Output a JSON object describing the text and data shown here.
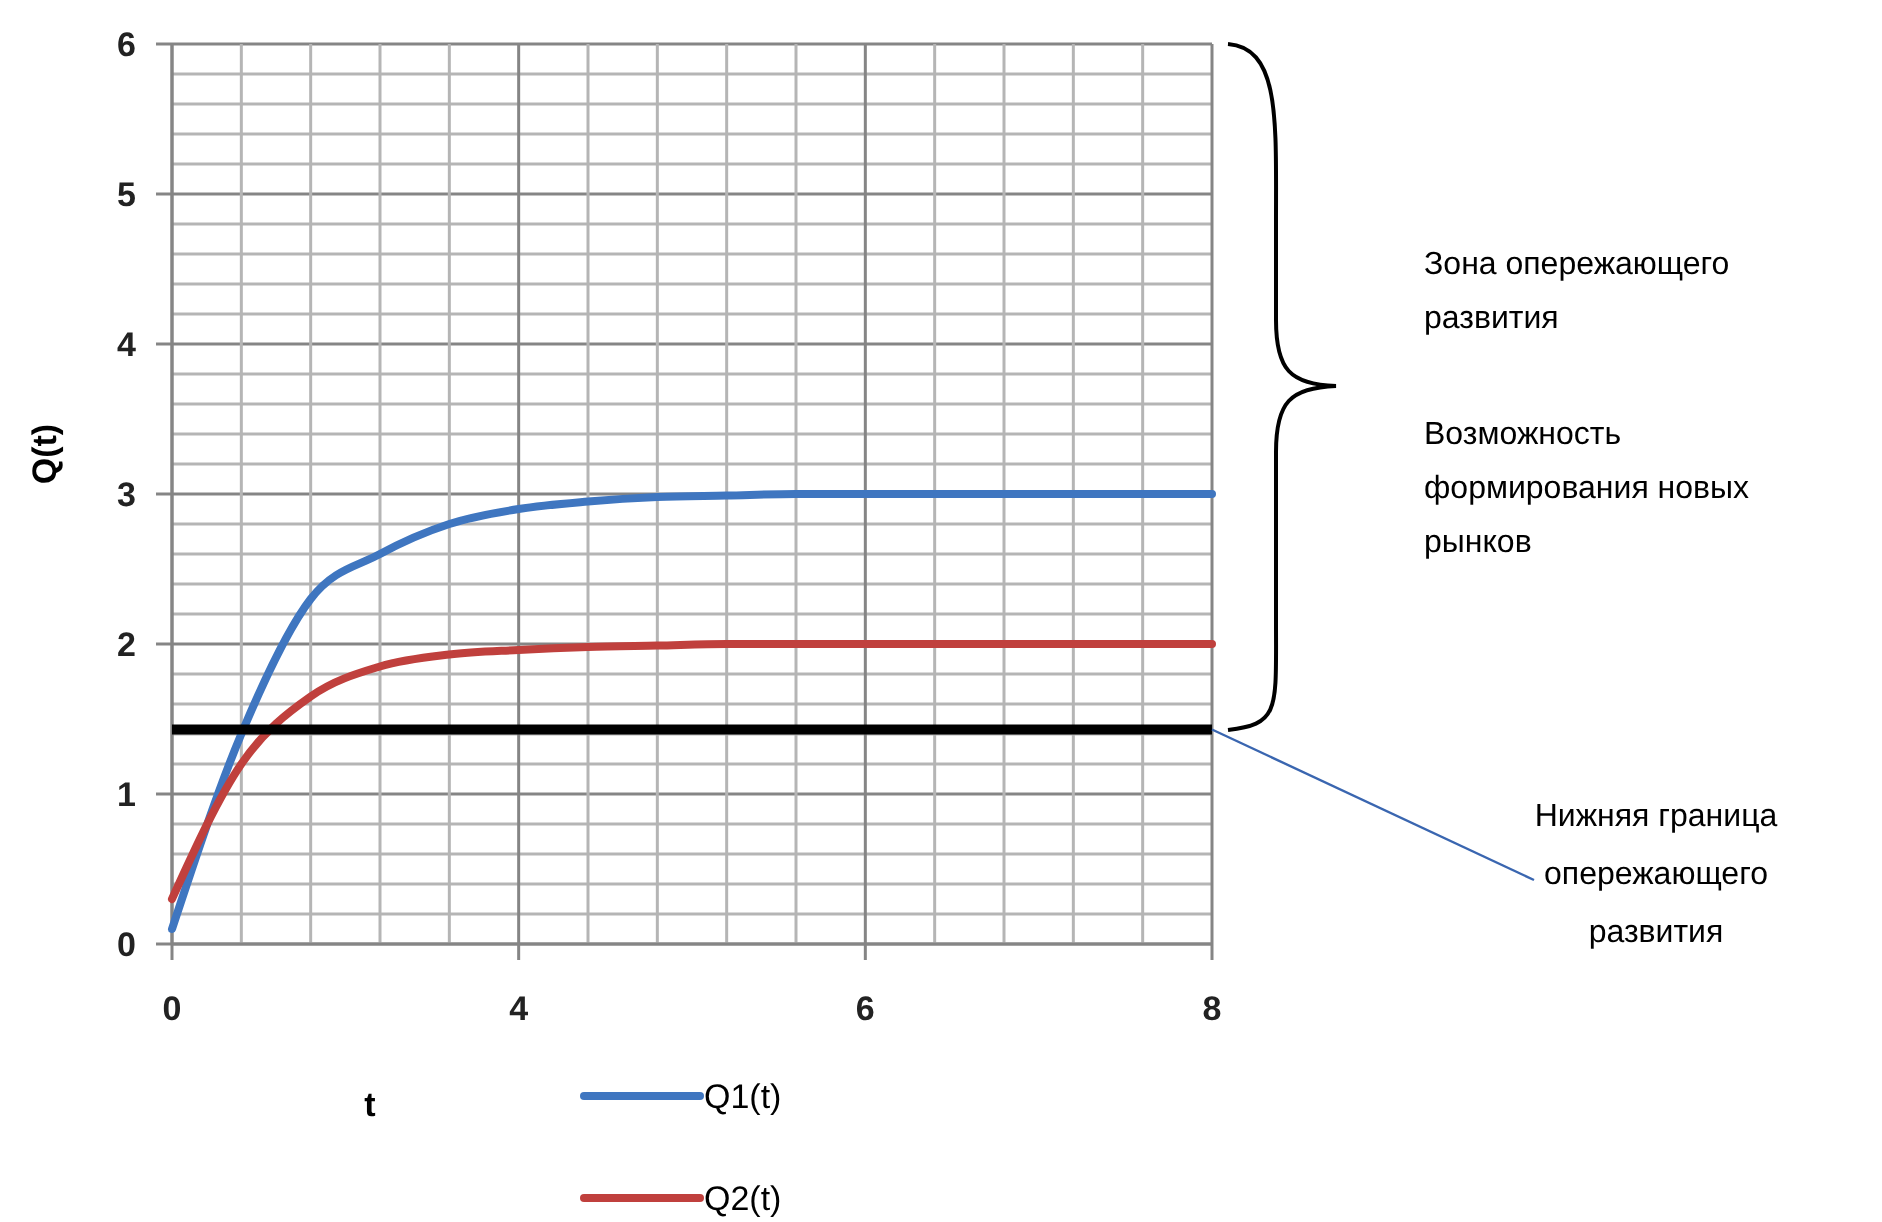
{
  "chart_data": {
    "type": "line",
    "xlabel": "t",
    "ylabel": "Q(t)",
    "categories": [
      "0",
      null,
      null,
      null,
      null,
      "4",
      null,
      null,
      null,
      null,
      "6",
      null,
      null,
      null,
      null,
      "8"
    ],
    "ylim": [
      0,
      6
    ],
    "yticks": [
      0,
      1,
      2,
      3,
      4,
      5,
      6
    ],
    "grid": true,
    "legend": "bottom",
    "series": [
      {
        "name": "Q1(t)",
        "color": "#3f76c0",
        "values": [
          0.1,
          1.4,
          2.3,
          2.6,
          2.8,
          2.9,
          2.95,
          2.98,
          2.99,
          3,
          3,
          3,
          3,
          3,
          3,
          3
        ]
      },
      {
        "name": "Q2(t)",
        "color": "#c0403d",
        "values": [
          0.3,
          1.2,
          1.65,
          1.85,
          1.93,
          1.96,
          1.98,
          1.99,
          2,
          2,
          2,
          2,
          2,
          2,
          2,
          2
        ]
      }
    ],
    "ref_lines": [
      {
        "axis": "y",
        "value": 1.43,
        "label": "Нижняя граница опережающего развития",
        "color": "#000000"
      }
    ],
    "annotations": [
      "Зона опережающего развития",
      "Возможность формирования новых рынков"
    ]
  }
}
